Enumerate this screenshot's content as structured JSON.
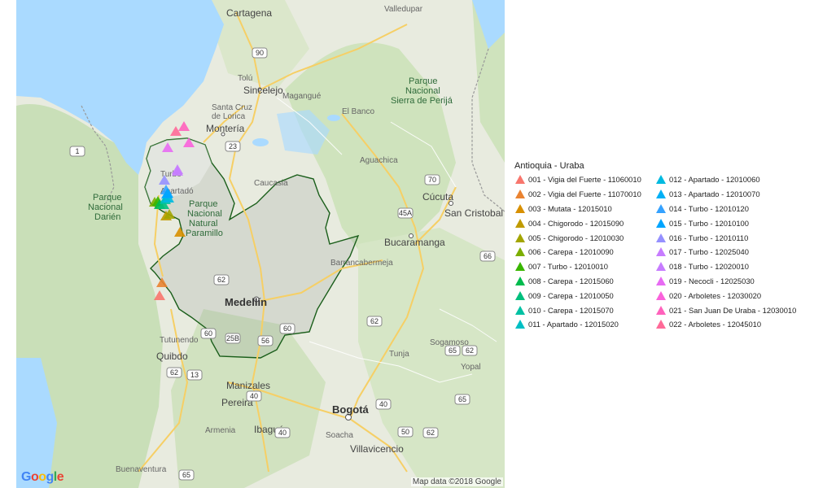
{
  "map": {
    "attribution": "Map data ©2018 Google",
    "logo": "Google",
    "labels": {
      "cartagena": "Cartagena",
      "valledupar": "Valledupar",
      "sincelejo": "Sincelejo",
      "tolu": "Tolú",
      "magangue": "Magangué",
      "elbanco": "El Banco",
      "santacruz1": "Santa Cruz",
      "santacruz2": "de Lorica",
      "monteria": "Montería",
      "aguachica": "Aguachica",
      "caucasia": "Caucasia",
      "turbo": "Turbo",
      "apartado": "Apartadó",
      "cucuta": "Cúcuta",
      "sancristobal": "San Cristobal",
      "bucaramanga": "Bucaramanga",
      "barrancabermeja": "Barrancabermeja",
      "medellin": "Medellín",
      "tutunendo": "Tutunendo",
      "quibdo": "Quibdo",
      "sogamoso": "Sogamoso",
      "tunja": "Tunja",
      "yopal": "Yopal",
      "manizales": "Manizales",
      "pereira": "Pereira",
      "armenia": "Armenia",
      "ibague": "Ibagué",
      "bogota": "Bogotá",
      "soacha": "Soacha",
      "villavicencio": "Villavicencio",
      "buenaventura": "Buenaventura",
      "parque_darien_1": "Parque",
      "parque_darien_2": "Nacional",
      "parque_darien_3": "Darién",
      "parque_paramillo_1": "Parque",
      "parque_paramillo_2": "Nacional",
      "parque_paramillo_3": "Natural",
      "parque_paramillo_4": "Paramillo",
      "parque_perija_1": "Parque",
      "parque_perija_2": "Nacional",
      "parque_perija_3": "Sierra de Perijá"
    },
    "road_shields": [
      "90",
      "23",
      "1",
      "70",
      "45A",
      "66",
      "62",
      "62",
      "62",
      "60",
      "25B",
      "56",
      "60",
      "62",
      "13",
      "50",
      "62",
      "65",
      "65",
      "40",
      "65",
      "40",
      "40"
    ]
  },
  "legend": {
    "title": "Antioquia - Uraba",
    "items": [
      {
        "label": "001 - Vigia del Fuerte - 11060010",
        "color": "#f8766d"
      },
      {
        "label": "002 - Vigia del Fuerte - 11070010",
        "color": "#ea8331"
      },
      {
        "label": "003 - Mutata - 12015010",
        "color": "#d89000"
      },
      {
        "label": "004 - Chigorodo - 12015090",
        "color": "#c09b00"
      },
      {
        "label": "005 - Chigorodo - 12010030",
        "color": "#a3a500"
      },
      {
        "label": "006 - Carepa - 12010090",
        "color": "#7cae00"
      },
      {
        "label": "007 - Turbo - 12010010",
        "color": "#39b600"
      },
      {
        "label": "008 - Carepa - 12015060",
        "color": "#00bb4e"
      },
      {
        "label": "009 - Carepa - 12010050",
        "color": "#00bf7d"
      },
      {
        "label": "010 - Carepa - 12015070",
        "color": "#00c1a3"
      },
      {
        "label": "011 - Apartado - 12015020",
        "color": "#00bfc4"
      },
      {
        "label": "012 - Apartado - 12010060",
        "color": "#00bae0"
      },
      {
        "label": "013 - Apartado - 12010070",
        "color": "#00b0f6"
      },
      {
        "label": "014 - Turbo - 12010120",
        "color": "#35a2ff"
      },
      {
        "label": "015 - Turbo - 12010100",
        "color": "#00a5ff"
      },
      {
        "label": "016 - Turbo - 12010110",
        "color": "#9590ff"
      },
      {
        "label": "017 - Turbo - 12025040",
        "color": "#c77cff"
      },
      {
        "label": "018 - Turbo - 12020010",
        "color": "#c77cff"
      },
      {
        "label": "019 - Necocli - 12025030",
        "color": "#e76bf3"
      },
      {
        "label": "020 - Arboletes - 12030020",
        "color": "#fa62db"
      },
      {
        "label": "021 - San Juan De Uraba - 12030010",
        "color": "#ff62bc"
      },
      {
        "label": "022 - Arboletes - 12045010",
        "color": "#ff6a98"
      }
    ]
  }
}
